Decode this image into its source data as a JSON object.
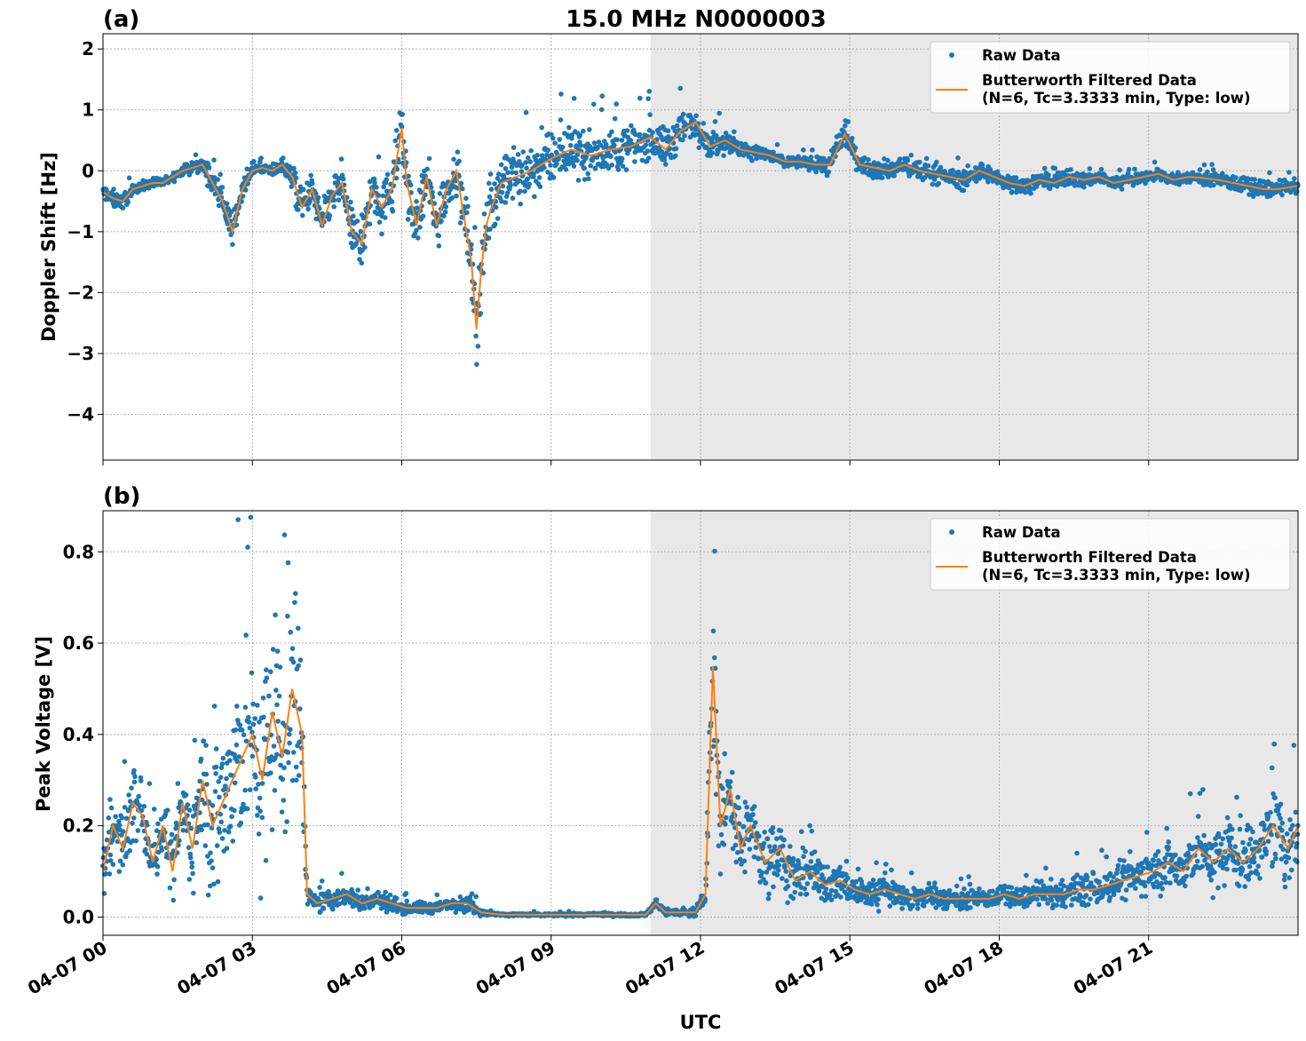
{
  "figure_title": "15.0 MHz N0000003",
  "x_axis_label": "UTC",
  "x_tick_labels": [
    "04-07 00",
    "04-07 03",
    "04-07 06",
    "04-07 09",
    "04-07 12",
    "04-07 15",
    "04-07 18",
    "04-07 21"
  ],
  "colors": {
    "raw": "#1f77b4",
    "filtered": "#ff7f0e",
    "night_shade": "#e8e8e8"
  },
  "chart_data": [
    {
      "type": "scatter",
      "panel_label": "(a)",
      "ylabel": "Doppler Shift [Hz]",
      "xlabel": "UTC",
      "x_unit": "hours UTC on 04-07",
      "xlim": [
        0,
        24
      ],
      "ylim": [
        -4.75,
        2.25
      ],
      "yticks": [
        2,
        1,
        0,
        -1,
        -2,
        -3,
        -4
      ],
      "ytick_labels": [
        "2",
        "1",
        "0",
        "−1",
        "−2",
        "−3",
        "−4"
      ],
      "grid": true,
      "legend_position": "top-right",
      "shaded_region": [
        11.0,
        24.0
      ],
      "series": [
        {
          "name": "Raw Data",
          "style": "points"
        },
        {
          "name": "Butterworth Filtered Data",
          "name_line2": "(N=6, Tc=3.3333 min, Type: low)",
          "style": "line"
        }
      ],
      "filtered_x": [
        0,
        0.2,
        0.4,
        0.6,
        0.8,
        1.0,
        1.2,
        1.4,
        1.6,
        1.8,
        2.0,
        2.2,
        2.4,
        2.6,
        2.8,
        3.0,
        3.2,
        3.4,
        3.6,
        3.8,
        4.0,
        4.2,
        4.4,
        4.6,
        4.8,
        5.0,
        5.2,
        5.4,
        5.6,
        5.8,
        6.0,
        6.1,
        6.3,
        6.5,
        6.7,
        6.9,
        7.1,
        7.3,
        7.4,
        7.5,
        7.6,
        7.7,
        7.8,
        8.0,
        8.3,
        8.6,
        9.0,
        9.4,
        9.8,
        10.2,
        10.6,
        11.0,
        11.3,
        11.6,
        11.9,
        12.2,
        12.5,
        12.8,
        13.1,
        13.4,
        13.7,
        14.0,
        14.3,
        14.6,
        14.9,
        15.2,
        15.5,
        15.8,
        16.1,
        16.4,
        16.7,
        17.0,
        17.3,
        17.6,
        17.9,
        18.2,
        18.5,
        18.8,
        19.1,
        19.4,
        19.7,
        20.0,
        20.3,
        20.6,
        20.9,
        21.2,
        21.5,
        21.8,
        22.1,
        22.4,
        22.7,
        23.0,
        23.3,
        23.6,
        24.0
      ],
      "filtered_y": [
        -0.35,
        -0.45,
        -0.5,
        -0.3,
        -0.25,
        -0.2,
        -0.2,
        -0.1,
        0.0,
        0.05,
        0.1,
        -0.2,
        -0.5,
        -1.0,
        -0.3,
        0.0,
        0.05,
        0.0,
        0.1,
        -0.1,
        -0.6,
        -0.3,
        -0.9,
        -0.4,
        -0.2,
        -1.0,
        -1.2,
        -0.3,
        -0.6,
        -0.3,
        0.7,
        -0.2,
        -0.9,
        -0.1,
        -0.9,
        -0.3,
        0.0,
        -1.0,
        -1.5,
        -2.6,
        -1.6,
        -0.9,
        -0.6,
        -0.2,
        -0.1,
        0.0,
        0.2,
        0.35,
        0.25,
        0.35,
        0.4,
        0.55,
        0.35,
        0.65,
        0.8,
        0.4,
        0.5,
        0.35,
        0.3,
        0.25,
        0.15,
        0.15,
        0.1,
        0.1,
        0.6,
        0.1,
        0.05,
        0.0,
        0.1,
        0.0,
        -0.05,
        -0.1,
        -0.15,
        0.0,
        -0.1,
        -0.2,
        -0.25,
        -0.15,
        -0.2,
        -0.1,
        -0.15,
        -0.1,
        -0.2,
        -0.15,
        -0.1,
        -0.05,
        -0.15,
        -0.1,
        -0.12,
        -0.15,
        -0.2,
        -0.25,
        -0.3,
        -0.3,
        -0.25
      ],
      "raw_spread": [
        0.15,
        0.2,
        0.25,
        0.1,
        0.1,
        0.1,
        0.1,
        0.1,
        0.1,
        0.15,
        0.15,
        0.3,
        0.35,
        0.3,
        0.2,
        0.1,
        0.1,
        0.1,
        0.15,
        0.3,
        0.5,
        0.4,
        0.5,
        0.5,
        0.4,
        0.6,
        0.6,
        0.5,
        0.6,
        0.6,
        0.8,
        0.6,
        0.6,
        0.6,
        0.7,
        0.6,
        0.5,
        0.6,
        0.8,
        1.0,
        0.8,
        0.6,
        0.6,
        0.7,
        0.7,
        0.6,
        0.6,
        0.6,
        0.55,
        0.55,
        0.5,
        0.5,
        0.5,
        0.5,
        0.4,
        0.3,
        0.3,
        0.25,
        0.2,
        0.15,
        0.15,
        0.15,
        0.15,
        0.3,
        0.3,
        0.2,
        0.25,
        0.25,
        0.25,
        0.25,
        0.2,
        0.2,
        0.25,
        0.2,
        0.2,
        0.2,
        0.2,
        0.15,
        0.2,
        0.2,
        0.2,
        0.15,
        0.15,
        0.15,
        0.15,
        0.15,
        0.15,
        0.15,
        0.15,
        0.15,
        0.2,
        0.2,
        0.2,
        0.2,
        0.15
      ]
    },
    {
      "type": "scatter",
      "panel_label": "(b)",
      "ylabel": "Peak Voltage [V]",
      "xlabel": "UTC",
      "x_unit": "hours UTC on 04-07",
      "xlim": [
        0,
        24
      ],
      "ylim": [
        -0.04,
        0.89
      ],
      "yticks": [
        0.8,
        0.6,
        0.4,
        0.2,
        0.0
      ],
      "ytick_labels": [
        "0.8",
        "0.6",
        "0.4",
        "0.2",
        "0.0"
      ],
      "grid": true,
      "legend_position": "top-right",
      "shaded_region": [
        11.0,
        24.0
      ],
      "series": [
        {
          "name": "Raw Data",
          "style": "points"
        },
        {
          "name": "Butterworth Filtered Data",
          "name_line2": "(N=6, Tc=3.3333 min, Type: low)",
          "style": "line"
        }
      ],
      "filtered_x": [
        0,
        0.2,
        0.4,
        0.6,
        0.8,
        1.0,
        1.2,
        1.4,
        1.6,
        1.8,
        2.0,
        2.2,
        2.4,
        2.6,
        2.8,
        3.0,
        3.2,
        3.4,
        3.6,
        3.8,
        4.0,
        4.1,
        4.3,
        4.6,
        4.9,
        5.2,
        5.5,
        5.8,
        6.1,
        6.4,
        6.7,
        7.0,
        7.3,
        7.6,
        8.0,
        8.5,
        9.0,
        9.5,
        10.0,
        10.5,
        10.9,
        11.1,
        11.3,
        11.6,
        11.9,
        12.1,
        12.25,
        12.4,
        12.6,
        12.8,
        13.0,
        13.3,
        13.6,
        13.9,
        14.2,
        14.5,
        14.8,
        15.1,
        15.4,
        15.7,
        16.0,
        16.3,
        16.6,
        16.9,
        17.2,
        17.5,
        17.8,
        18.1,
        18.4,
        18.7,
        19.0,
        19.3,
        19.6,
        19.9,
        20.2,
        20.5,
        20.8,
        21.1,
        21.4,
        21.7,
        22.0,
        22.3,
        22.6,
        22.9,
        23.2,
        23.5,
        23.8,
        24.0
      ],
      "filtered_y": [
        0.1,
        0.2,
        0.15,
        0.25,
        0.22,
        0.12,
        0.2,
        0.1,
        0.25,
        0.15,
        0.3,
        0.2,
        0.25,
        0.3,
        0.35,
        0.4,
        0.3,
        0.45,
        0.35,
        0.5,
        0.4,
        0.05,
        0.03,
        0.04,
        0.05,
        0.03,
        0.04,
        0.03,
        0.02,
        0.02,
        0.02,
        0.03,
        0.03,
        0.01,
        0.005,
        0.005,
        0.005,
        0.005,
        0.005,
        0.005,
        0.005,
        0.03,
        0.01,
        0.01,
        0.01,
        0.05,
        0.55,
        0.2,
        0.28,
        0.15,
        0.2,
        0.12,
        0.15,
        0.08,
        0.1,
        0.07,
        0.08,
        0.06,
        0.05,
        0.06,
        0.05,
        0.04,
        0.05,
        0.04,
        0.04,
        0.04,
        0.04,
        0.05,
        0.04,
        0.05,
        0.05,
        0.05,
        0.06,
        0.06,
        0.07,
        0.08,
        0.09,
        0.1,
        0.12,
        0.1,
        0.15,
        0.12,
        0.15,
        0.12,
        0.15,
        0.2,
        0.15,
        0.2
      ],
      "raw_spread": [
        0.1,
        0.12,
        0.1,
        0.12,
        0.1,
        0.08,
        0.1,
        0.1,
        0.15,
        0.15,
        0.2,
        0.25,
        0.3,
        0.3,
        0.35,
        0.35,
        0.35,
        0.35,
        0.35,
        0.35,
        0.3,
        0.03,
        0.03,
        0.03,
        0.03,
        0.03,
        0.03,
        0.03,
        0.02,
        0.02,
        0.02,
        0.02,
        0.03,
        0.01,
        0.005,
        0.005,
        0.005,
        0.005,
        0.005,
        0.005,
        0.005,
        0.02,
        0.01,
        0.01,
        0.01,
        0.05,
        0.25,
        0.15,
        0.15,
        0.12,
        0.12,
        0.12,
        0.1,
        0.08,
        0.08,
        0.06,
        0.06,
        0.05,
        0.05,
        0.05,
        0.04,
        0.04,
        0.04,
        0.04,
        0.03,
        0.03,
        0.03,
        0.03,
        0.03,
        0.04,
        0.04,
        0.04,
        0.05,
        0.05,
        0.05,
        0.06,
        0.07,
        0.07,
        0.08,
        0.08,
        0.1,
        0.1,
        0.1,
        0.1,
        0.1,
        0.12,
        0.12,
        0.12
      ]
    }
  ]
}
